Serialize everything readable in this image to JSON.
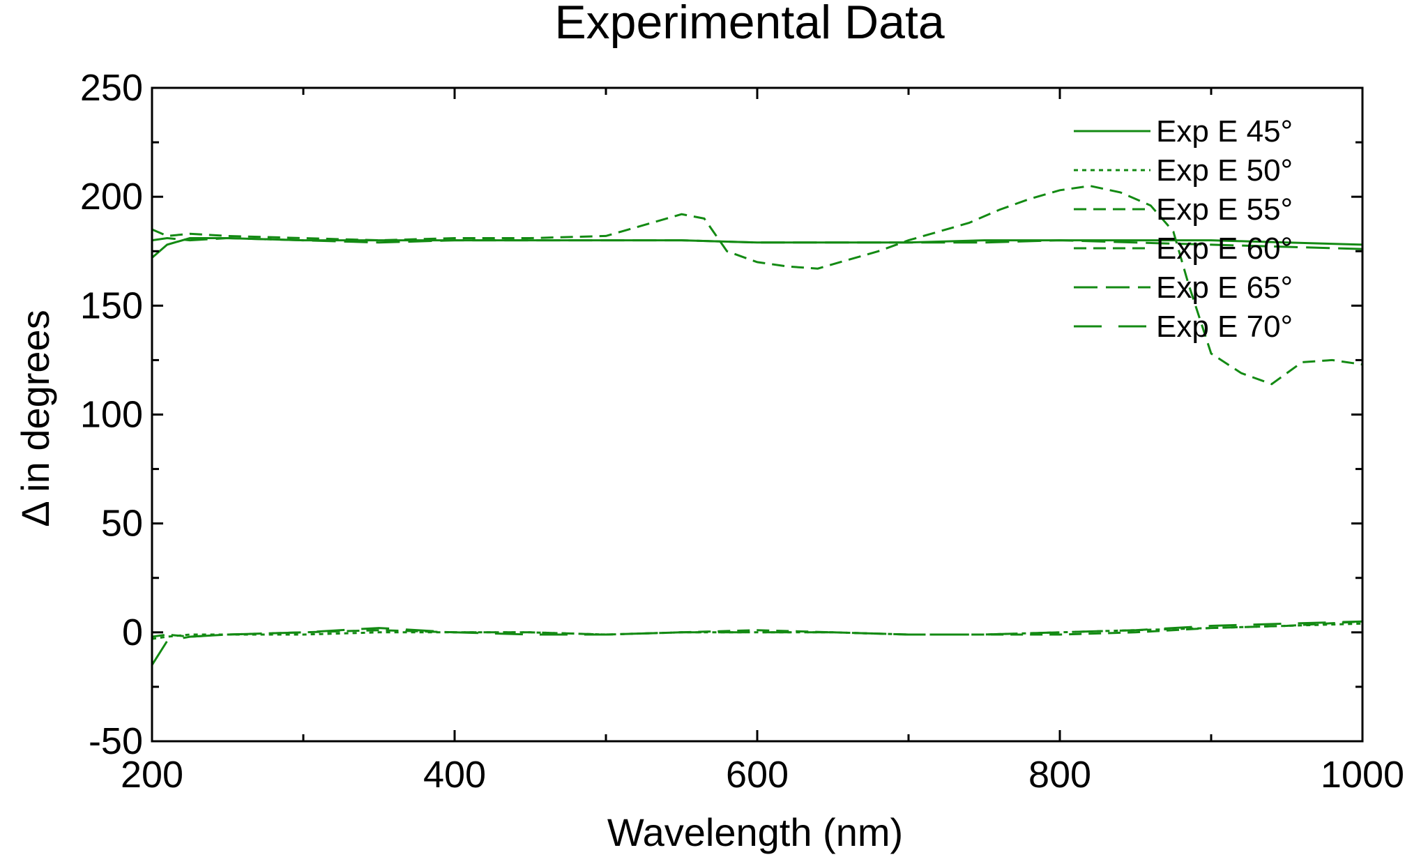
{
  "chart_data": {
    "type": "line",
    "title": "Experimental Data",
    "xlabel": "Wavelength (nm)",
    "ylabel": "Δ in degrees",
    "xlim": [
      200,
      1000
    ],
    "ylim": [
      -50,
      250
    ],
    "xticks": [
      200,
      400,
      600,
      800,
      1000
    ],
    "yticks": [
      -50,
      0,
      50,
      100,
      150,
      200,
      250
    ],
    "grid": false,
    "legend_position": "top-right",
    "line_color": "#138a13",
    "series": [
      {
        "name": "Exp E 45°",
        "dash": "solid",
        "x": [
          200,
          210,
          225,
          250,
          300,
          350,
          400,
          450,
          500,
          550,
          600,
          650,
          700,
          750,
          800,
          850,
          900,
          950,
          1000
        ],
        "y": [
          172,
          178,
          181,
          181,
          180,
          180,
          180,
          180,
          180,
          180,
          179,
          179,
          179,
          180,
          180,
          180,
          180,
          179,
          178
        ]
      },
      {
        "name": "Exp E 50°",
        "dash": "dotted",
        "x": [
          200,
          210,
          225,
          250,
          300,
          350,
          400,
          450,
          500,
          550,
          600,
          650,
          700,
          750,
          800,
          850,
          900,
          950,
          1000
        ],
        "y": [
          -3,
          -2,
          -1,
          -1,
          -1,
          0,
          0,
          0,
          -1,
          0,
          0,
          0,
          -1,
          -1,
          0,
          1,
          2,
          3,
          4
        ]
      },
      {
        "name": "Exp E 55°",
        "dash": "dashed",
        "x": [
          200,
          210,
          225,
          250,
          300,
          350,
          400,
          450,
          500,
          550,
          565,
          580,
          600,
          620,
          640,
          660,
          680,
          700,
          720,
          740,
          760,
          780,
          800,
          820,
          840,
          860,
          875,
          885,
          900,
          920,
          940,
          960,
          980,
          1000
        ],
        "y": [
          185,
          182,
          183,
          182,
          181,
          180,
          181,
          181,
          182,
          192,
          190,
          175,
          170,
          168,
          167,
          171,
          175,
          180,
          184,
          188,
          194,
          199,
          203,
          205,
          202,
          196,
          184,
          160,
          128,
          119,
          114,
          124,
          125,
          123
        ]
      },
      {
        "name": "Exp E 60°",
        "dash": "dashed",
        "x": [
          200,
          210,
          225,
          250,
          300,
          350,
          400,
          450,
          500,
          550,
          600,
          650,
          700,
          750,
          800,
          850,
          900,
          950,
          1000
        ],
        "y": [
          -2,
          -1,
          -2,
          -1,
          0,
          1,
          0,
          0,
          -1,
          0,
          1,
          0,
          -1,
          -1,
          -1,
          0,
          2,
          3,
          5
        ]
      },
      {
        "name": "Exp E 65°",
        "dash": "longdash",
        "x": [
          200,
          210,
          225,
          250,
          300,
          350,
          400,
          450,
          500,
          550,
          600,
          650,
          700,
          750,
          800,
          850,
          900,
          950,
          1000
        ],
        "y": [
          180,
          181,
          180,
          181,
          180,
          179,
          180,
          180,
          180,
          180,
          179,
          179,
          179,
          179,
          180,
          179,
          178,
          177,
          176
        ]
      },
      {
        "name": "Exp E 70°",
        "dash": "widedash",
        "x": [
          200,
          210,
          225,
          250,
          300,
          350,
          400,
          450,
          500,
          550,
          600,
          650,
          700,
          750,
          800,
          850,
          900,
          950,
          1000
        ],
        "y": [
          -15,
          -4,
          -2,
          -1,
          0,
          2,
          0,
          -1,
          -1,
          0,
          0,
          0,
          -1,
          -1,
          0,
          1,
          3,
          4,
          5
        ]
      }
    ]
  }
}
